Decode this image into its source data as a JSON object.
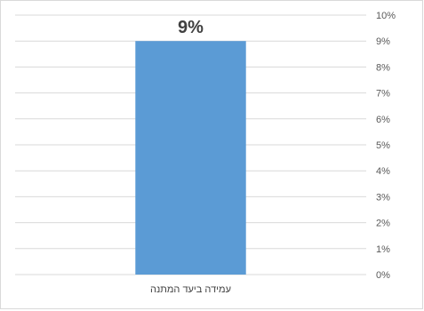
{
  "chart_data": {
    "type": "bar",
    "categories": [
      "עמידה ביעד המתנה"
    ],
    "values": [
      9
    ],
    "data_labels": [
      "9%"
    ],
    "y_ticks": [
      "0%",
      "1%",
      "2%",
      "3%",
      "4%",
      "5%",
      "6%",
      "7%",
      "8%",
      "9%",
      "10%"
    ],
    "ylim": [
      0,
      10
    ],
    "y_axis_position": "right",
    "grid": true,
    "legend": "none",
    "bar_color": "#5b9bd5"
  }
}
